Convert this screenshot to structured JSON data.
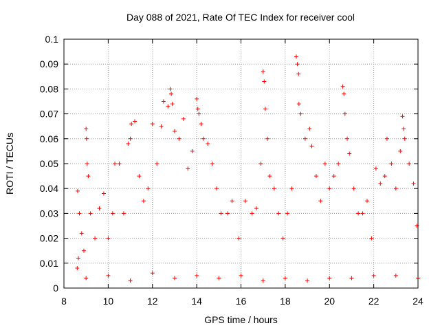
{
  "chart_data": {
    "type": "scatter",
    "title": "Day 088 of 2021, Rate Of TEC Index for receiver cool",
    "xlabel": "GPS time / hours",
    "ylabel": "ROTI / TECUs",
    "xlim": [
      8,
      24
    ],
    "ylim": [
      0,
      0.1
    ],
    "xticks": [
      8,
      10,
      12,
      14,
      16,
      18,
      20,
      22,
      24
    ],
    "xtick_labels": [
      "8",
      "10",
      "12",
      "14",
      "16",
      "18",
      "20",
      "22",
      "24"
    ],
    "yticks": [
      0,
      0.01,
      0.02,
      0.03,
      0.04,
      0.05,
      0.06,
      0.07,
      0.08,
      0.09,
      0.1
    ],
    "ytick_labels": [
      "0",
      "0.01",
      "0.02",
      "0.03",
      "0.04",
      "0.05",
      "0.06",
      "0.07",
      "0.08",
      "0.09",
      "0.1"
    ],
    "grid": true,
    "marker": "+",
    "color": "#ff0000",
    "series": [
      {
        "name": "ROTI",
        "points": [
          [
            8.6,
            0.008
          ],
          [
            8.62,
            0.039
          ],
          [
            8.65,
            0.012
          ],
          [
            8.7,
            0.03
          ],
          [
            8.8,
            0.022
          ],
          [
            8.9,
            0.015
          ],
          [
            9.0,
            0.064
          ],
          [
            9.02,
            0.06
          ],
          [
            9.05,
            0.05
          ],
          [
            9.1,
            0.045
          ],
          [
            9.2,
            0.03
          ],
          [
            9.4,
            0.02
          ],
          [
            9.6,
            0.032
          ],
          [
            9.8,
            0.038
          ],
          [
            10.0,
            0.02
          ],
          [
            10.2,
            0.03
          ],
          [
            10.3,
            0.05
          ],
          [
            10.5,
            0.05
          ],
          [
            10.7,
            0.03
          ],
          [
            10.9,
            0.058
          ],
          [
            11.0,
            0.06
          ],
          [
            11.05,
            0.066
          ],
          [
            11.2,
            0.067
          ],
          [
            11.4,
            0.045
          ],
          [
            11.6,
            0.035
          ],
          [
            11.8,
            0.04
          ],
          [
            12.0,
            0.066
          ],
          [
            12.2,
            0.05
          ],
          [
            12.4,
            0.065
          ],
          [
            12.5,
            0.075
          ],
          [
            12.7,
            0.073
          ],
          [
            12.8,
            0.08
          ],
          [
            12.85,
            0.078
          ],
          [
            12.9,
            0.074
          ],
          [
            13.0,
            0.063
          ],
          [
            13.2,
            0.06
          ],
          [
            13.4,
            0.068
          ],
          [
            13.6,
            0.048
          ],
          [
            13.8,
            0.055
          ],
          [
            14.0,
            0.076
          ],
          [
            14.05,
            0.072
          ],
          [
            14.1,
            0.07
          ],
          [
            14.2,
            0.066
          ],
          [
            14.3,
            0.06
          ],
          [
            14.5,
            0.058
          ],
          [
            14.7,
            0.05
          ],
          [
            14.9,
            0.04
          ],
          [
            15.1,
            0.03
          ],
          [
            15.4,
            0.03
          ],
          [
            15.6,
            0.035
          ],
          [
            15.9,
            0.02
          ],
          [
            16.2,
            0.035
          ],
          [
            16.5,
            0.03
          ],
          [
            16.7,
            0.032
          ],
          [
            16.9,
            0.05
          ],
          [
            17.0,
            0.087
          ],
          [
            17.05,
            0.083
          ],
          [
            17.1,
            0.072
          ],
          [
            17.2,
            0.06
          ],
          [
            17.3,
            0.045
          ],
          [
            17.5,
            0.04
          ],
          [
            17.7,
            0.03
          ],
          [
            17.9,
            0.02
          ],
          [
            18.1,
            0.03
          ],
          [
            18.3,
            0.04
          ],
          [
            18.5,
            0.093
          ],
          [
            18.55,
            0.09
          ],
          [
            18.6,
            0.086
          ],
          [
            18.62,
            0.074
          ],
          [
            18.7,
            0.07
          ],
          [
            18.9,
            0.06
          ],
          [
            19.1,
            0.064
          ],
          [
            19.2,
            0.057
          ],
          [
            19.4,
            0.045
          ],
          [
            19.6,
            0.035
          ],
          [
            19.8,
            0.05
          ],
          [
            20.0,
            0.04
          ],
          [
            20.2,
            0.045
          ],
          [
            20.4,
            0.05
          ],
          [
            20.6,
            0.081
          ],
          [
            20.65,
            0.078
          ],
          [
            20.7,
            0.07
          ],
          [
            20.8,
            0.06
          ],
          [
            20.9,
            0.054
          ],
          [
            21.1,
            0.04
          ],
          [
            21.3,
            0.03
          ],
          [
            21.5,
            0.03
          ],
          [
            21.7,
            0.035
          ],
          [
            21.9,
            0.02
          ],
          [
            22.1,
            0.048
          ],
          [
            22.3,
            0.042
          ],
          [
            22.5,
            0.045
          ],
          [
            22.6,
            0.06
          ],
          [
            22.8,
            0.05
          ],
          [
            23.0,
            0.04
          ],
          [
            23.2,
            0.055
          ],
          [
            23.3,
            0.069
          ],
          [
            23.35,
            0.064
          ],
          [
            23.4,
            0.06
          ],
          [
            23.6,
            0.05
          ],
          [
            23.8,
            0.042
          ],
          [
            23.95,
            0.025
          ],
          [
            9.0,
            0.004
          ],
          [
            10.0,
            0.005
          ],
          [
            11.0,
            0.003
          ],
          [
            12.0,
            0.006
          ],
          [
            13.0,
            0.004
          ],
          [
            14.0,
            0.005
          ],
          [
            15.0,
            0.004
          ],
          [
            16.0,
            0.005
          ],
          [
            17.0,
            0.003
          ],
          [
            18.0,
            0.004
          ],
          [
            19.0,
            0.003
          ],
          [
            20.0,
            0.004
          ],
          [
            21.0,
            0.004
          ],
          [
            22.0,
            0.005
          ],
          [
            23.0,
            0.005
          ],
          [
            24.0,
            0.004
          ]
        ]
      }
    ]
  }
}
